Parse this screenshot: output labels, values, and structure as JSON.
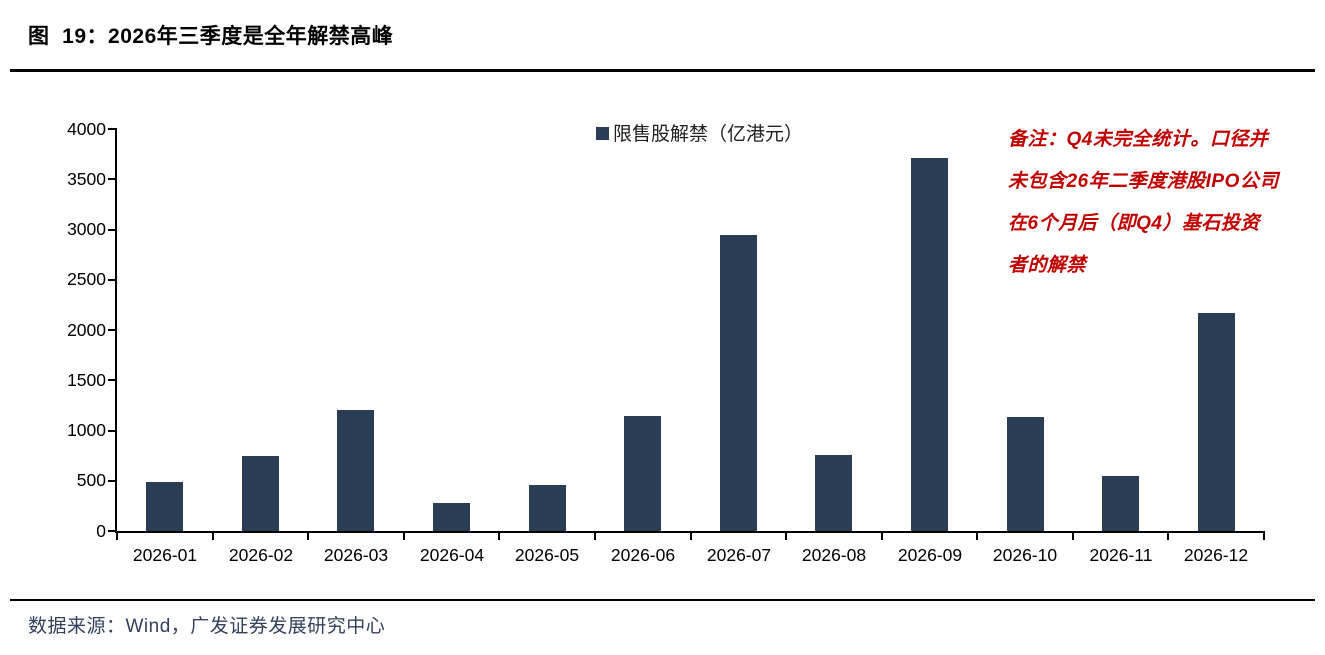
{
  "page": {
    "title": "图  19：2026年三季度是全年解禁高峰",
    "footer": "数据来源：Wind，广发证券发展研究中心"
  },
  "legend": {
    "label": "限售股解禁（亿港元）"
  },
  "note": {
    "lines": [
      "备注：Q4未完全统计。口径并",
      "未包含26年二季度港股IPO公司",
      "在6个月后（即Q4）基石投资",
      "者的解禁"
    ]
  },
  "colors": {
    "bar": "#2b3c55",
    "note_red": "#c00000",
    "footer_text": "#33415c",
    "axis": "#000000"
  },
  "chart_data": {
    "type": "bar",
    "title": "图 19：2026年三季度是全年解禁高峰",
    "legend_entries": [
      "限售股解禁（亿港元）"
    ],
    "legend_position": "top-center",
    "categories": [
      "2026-01",
      "2026-02",
      "2026-03",
      "2026-04",
      "2026-05",
      "2026-06",
      "2026-07",
      "2026-08",
      "2026-09",
      "2026-10",
      "2026-11",
      "2026-12"
    ],
    "values": [
      485,
      745,
      1200,
      280,
      455,
      1140,
      2950,
      755,
      3710,
      1130,
      550,
      2170
    ],
    "unit": "亿港元",
    "xlabel": "",
    "ylabel": "",
    "ylim": [
      0,
      4000
    ],
    "ytick_step": 500,
    "grid": false,
    "annotation": "备注：Q4未完全统计。口径并未包含26年二季度港股IPO公司在6个月后（即Q4）基石投资者的解禁"
  }
}
